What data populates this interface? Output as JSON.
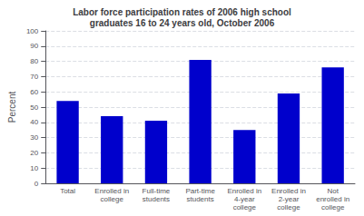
{
  "chart_data": {
    "type": "bar",
    "title": "Labor force participation rates of 2006 high school\ngraduates 16 to 24 years old, October 2006",
    "categories": [
      "Total",
      "Enrolled in\ncollege",
      "Full-time\nstudents",
      "Part-time\nstudents",
      "Enrolled in\n4-year\ncollege",
      "Enrolled in\n2-year\ncollege",
      "Not\nenrolled in\ncollege"
    ],
    "values": [
      54,
      44,
      41,
      81,
      35,
      59,
      76
    ],
    "color": "#0000CC",
    "ylabel": "Percent",
    "ylim": [
      0,
      100
    ],
    "yticks": [
      0,
      10,
      20,
      30,
      40,
      50,
      60,
      70,
      80,
      90,
      100
    ],
    "grid": true
  }
}
